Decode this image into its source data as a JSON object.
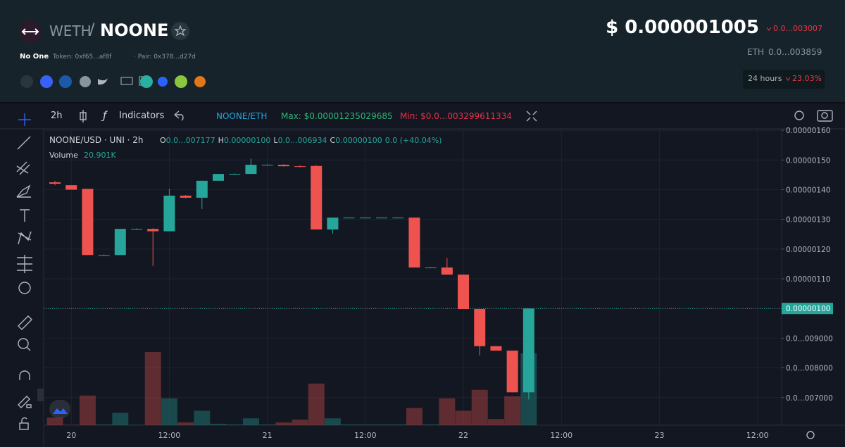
{
  "header": {
    "base": "WETH",
    "separator": "/",
    "pair": "NOONE",
    "price": "$ 0.000001005",
    "price_change": "0.0...003007",
    "eth_label": "ETH",
    "eth_price": "0.0...003859",
    "name": "No One",
    "token": "Token: 0xf65...af8f",
    "pair_address": "· Pair: 0x378...d27d",
    "period": "24 hours",
    "period_change": "23.03%"
  },
  "toolbar": {
    "interval": "2h",
    "indicators": "Indicators",
    "quote": "NOONE/ETH",
    "max": "Max: $0.00001235029685",
    "min": "Min: $0.0...003299611334"
  },
  "legend": {
    "symbol": "NOONE/USD · UNI · 2h",
    "o": "O",
    "o_value": "0.0...007177",
    "h": "H",
    "h_value": "0.00000100",
    "l": "L",
    "l_value": "0.0...006934",
    "c": "C",
    "c_value": "0.00000100",
    "change": "0.0 (+40.04%)"
  },
  "chart": {
    "type": "candlestick",
    "up_color": "#26a69a",
    "down_color": "#ef5350",
    "grid": true,
    "xlim": [
      -0.69,
      44.48
    ],
    "xticks": [
      {
        "value": 1,
        "label": "20"
      },
      {
        "value": 7,
        "label": "12:00"
      },
      {
        "value": 13,
        "label": "21"
      },
      {
        "value": 19,
        "label": "12:00"
      },
      {
        "value": 25,
        "label": "22"
      },
      {
        "value": 31,
        "label": "12:00"
      },
      {
        "value": 37,
        "label": "23"
      },
      {
        "value": 43,
        "label": "12:00"
      }
    ],
    "ylim": [
      6.07e-07,
      1.605e-06
    ],
    "yticks": [
      {
        "value": 1.6e-06,
        "label": "0.00000160"
      },
      {
        "value": 1.5e-06,
        "label": "0.00000150"
      },
      {
        "value": 1.4e-06,
        "label": "0.00000140"
      },
      {
        "value": 1.3e-06,
        "label": "0.00000130"
      },
      {
        "value": 1.2e-06,
        "label": "0.00000120"
      },
      {
        "value": 1.1e-06,
        "label": "0.00000110"
      },
      {
        "value": 1e-06,
        "label": "0.00000100"
      },
      {
        "value": 9e-07,
        "label": "0.0...009000"
      },
      {
        "value": 8e-07,
        "label": "0.0...008000"
      },
      {
        "value": 7e-07,
        "label": "0.0...007000"
      }
    ],
    "price_line": {
      "value": 1e-06,
      "label": "0.00000100"
    },
    "volume_label": "Volume",
    "volume_last": {
      "value": 20901,
      "label": "20.901K"
    },
    "candles": [
      {
        "o": 1.425e-06,
        "h": 1.43e-06,
        "l": 1.415e-06,
        "c": 1.42e-06
      },
      {
        "o": 1.415e-06,
        "h": 1.415e-06,
        "l": 1.4e-06,
        "c": 1.4e-06
      },
      {
        "o": 1.403e-06,
        "h": 1.403e-06,
        "l": 1.18e-06,
        "c": 1.18e-06
      },
      {
        "o": 1.18e-06,
        "h": 1.182e-06,
        "l": 1.178e-06,
        "c": 1.18e-06
      },
      {
        "o": 1.18e-06,
        "h": 1.268e-06,
        "l": 1.18e-06,
        "c": 1.268e-06
      },
      {
        "o": 1.268e-06,
        "h": 1.27e-06,
        "l": 1.266e-06,
        "c": 1.268e-06
      },
      {
        "o": 1.268e-06,
        "h": 1.27e-06,
        "l": 1.143e-06,
        "c": 1.26e-06
      },
      {
        "o": 1.26e-06,
        "h": 1.403e-06,
        "l": 1.26e-06,
        "c": 1.38e-06
      },
      {
        "o": 1.38e-06,
        "h": 1.382e-06,
        "l": 1.371e-06,
        "c": 1.373e-06
      },
      {
        "o": 1.373e-06,
        "h": 1.43e-06,
        "l": 1.335e-06,
        "c": 1.43e-06
      },
      {
        "o": 1.43e-06,
        "h": 1.453e-06,
        "l": 1.43e-06,
        "c": 1.453e-06
      },
      {
        "o": 1.453e-06,
        "h": 1.455e-06,
        "l": 1.451e-06,
        "c": 1.453e-06
      },
      {
        "o": 1.453e-06,
        "h": 1.505e-06,
        "l": 1.453e-06,
        "c": 1.484e-06
      },
      {
        "o": 1.484e-06,
        "h": 1.486e-06,
        "l": 1.482e-06,
        "c": 1.484e-06
      },
      {
        "o": 1.484e-06,
        "h": 1.486e-06,
        "l": 1.478e-06,
        "c": 1.479e-06
      },
      {
        "o": 1.479e-06,
        "h": 1.482e-06,
        "l": 1.475e-06,
        "c": 1.477e-06
      },
      {
        "o": 1.48e-06,
        "h": 1.482e-06,
        "l": 1.266e-06,
        "c": 1.266e-06
      },
      {
        "o": 1.266e-06,
        "h": 1.306e-06,
        "l": 1.252e-06,
        "c": 1.306e-06
      },
      {
        "o": 1.306e-06,
        "h": 1.307e-06,
        "l": 1.305e-06,
        "c": 1.306e-06
      },
      {
        "o": 1.306e-06,
        "h": 1.307e-06,
        "l": 1.305e-06,
        "c": 1.306e-06
      },
      {
        "o": 1.306e-06,
        "h": 1.307e-06,
        "l": 1.305e-06,
        "c": 1.306e-06
      },
      {
        "o": 1.306e-06,
        "h": 1.307e-06,
        "l": 1.305e-06,
        "c": 1.306e-06
      },
      {
        "o": 1.306e-06,
        "h": 1.306e-06,
        "l": 1.138e-06,
        "c": 1.138e-06
      },
      {
        "o": 1.138e-06,
        "h": 1.139e-06,
        "l": 1.137e-06,
        "c": 1.138e-06
      },
      {
        "o": 1.138e-06,
        "h": 1.17e-06,
        "l": 1.114e-06,
        "c": 1.114e-06
      },
      {
        "o": 1.114e-06,
        "h": 1.114e-06,
        "l": 9.98e-07,
        "c": 9.98e-07
      },
      {
        "o": 9.98e-07,
        "h": 9.98e-07,
        "l": 8.42e-07,
        "c": 8.73e-07
      },
      {
        "o": 8.73e-07,
        "h": 8.73e-07,
        "l": 8.58e-07,
        "c": 8.58e-07
      },
      {
        "o": 8.58e-07,
        "h": 8.58e-07,
        "l": 7.177e-07,
        "c": 7.177e-07
      },
      {
        "o": 7.177e-07,
        "h": 1e-06,
        "l": 6.934e-07,
        "c": 1e-06
      }
    ],
    "volumes": [
      2200,
      100,
      8600,
      200,
      3600,
      100,
      21300,
      7800,
      800,
      4200,
      400,
      200,
      2000,
      200,
      800,
      1600,
      12100,
      2000,
      200,
      200,
      200,
      200,
      5000,
      200,
      7800,
      4200,
      10300,
      1800,
      8400,
      20901
    ]
  }
}
